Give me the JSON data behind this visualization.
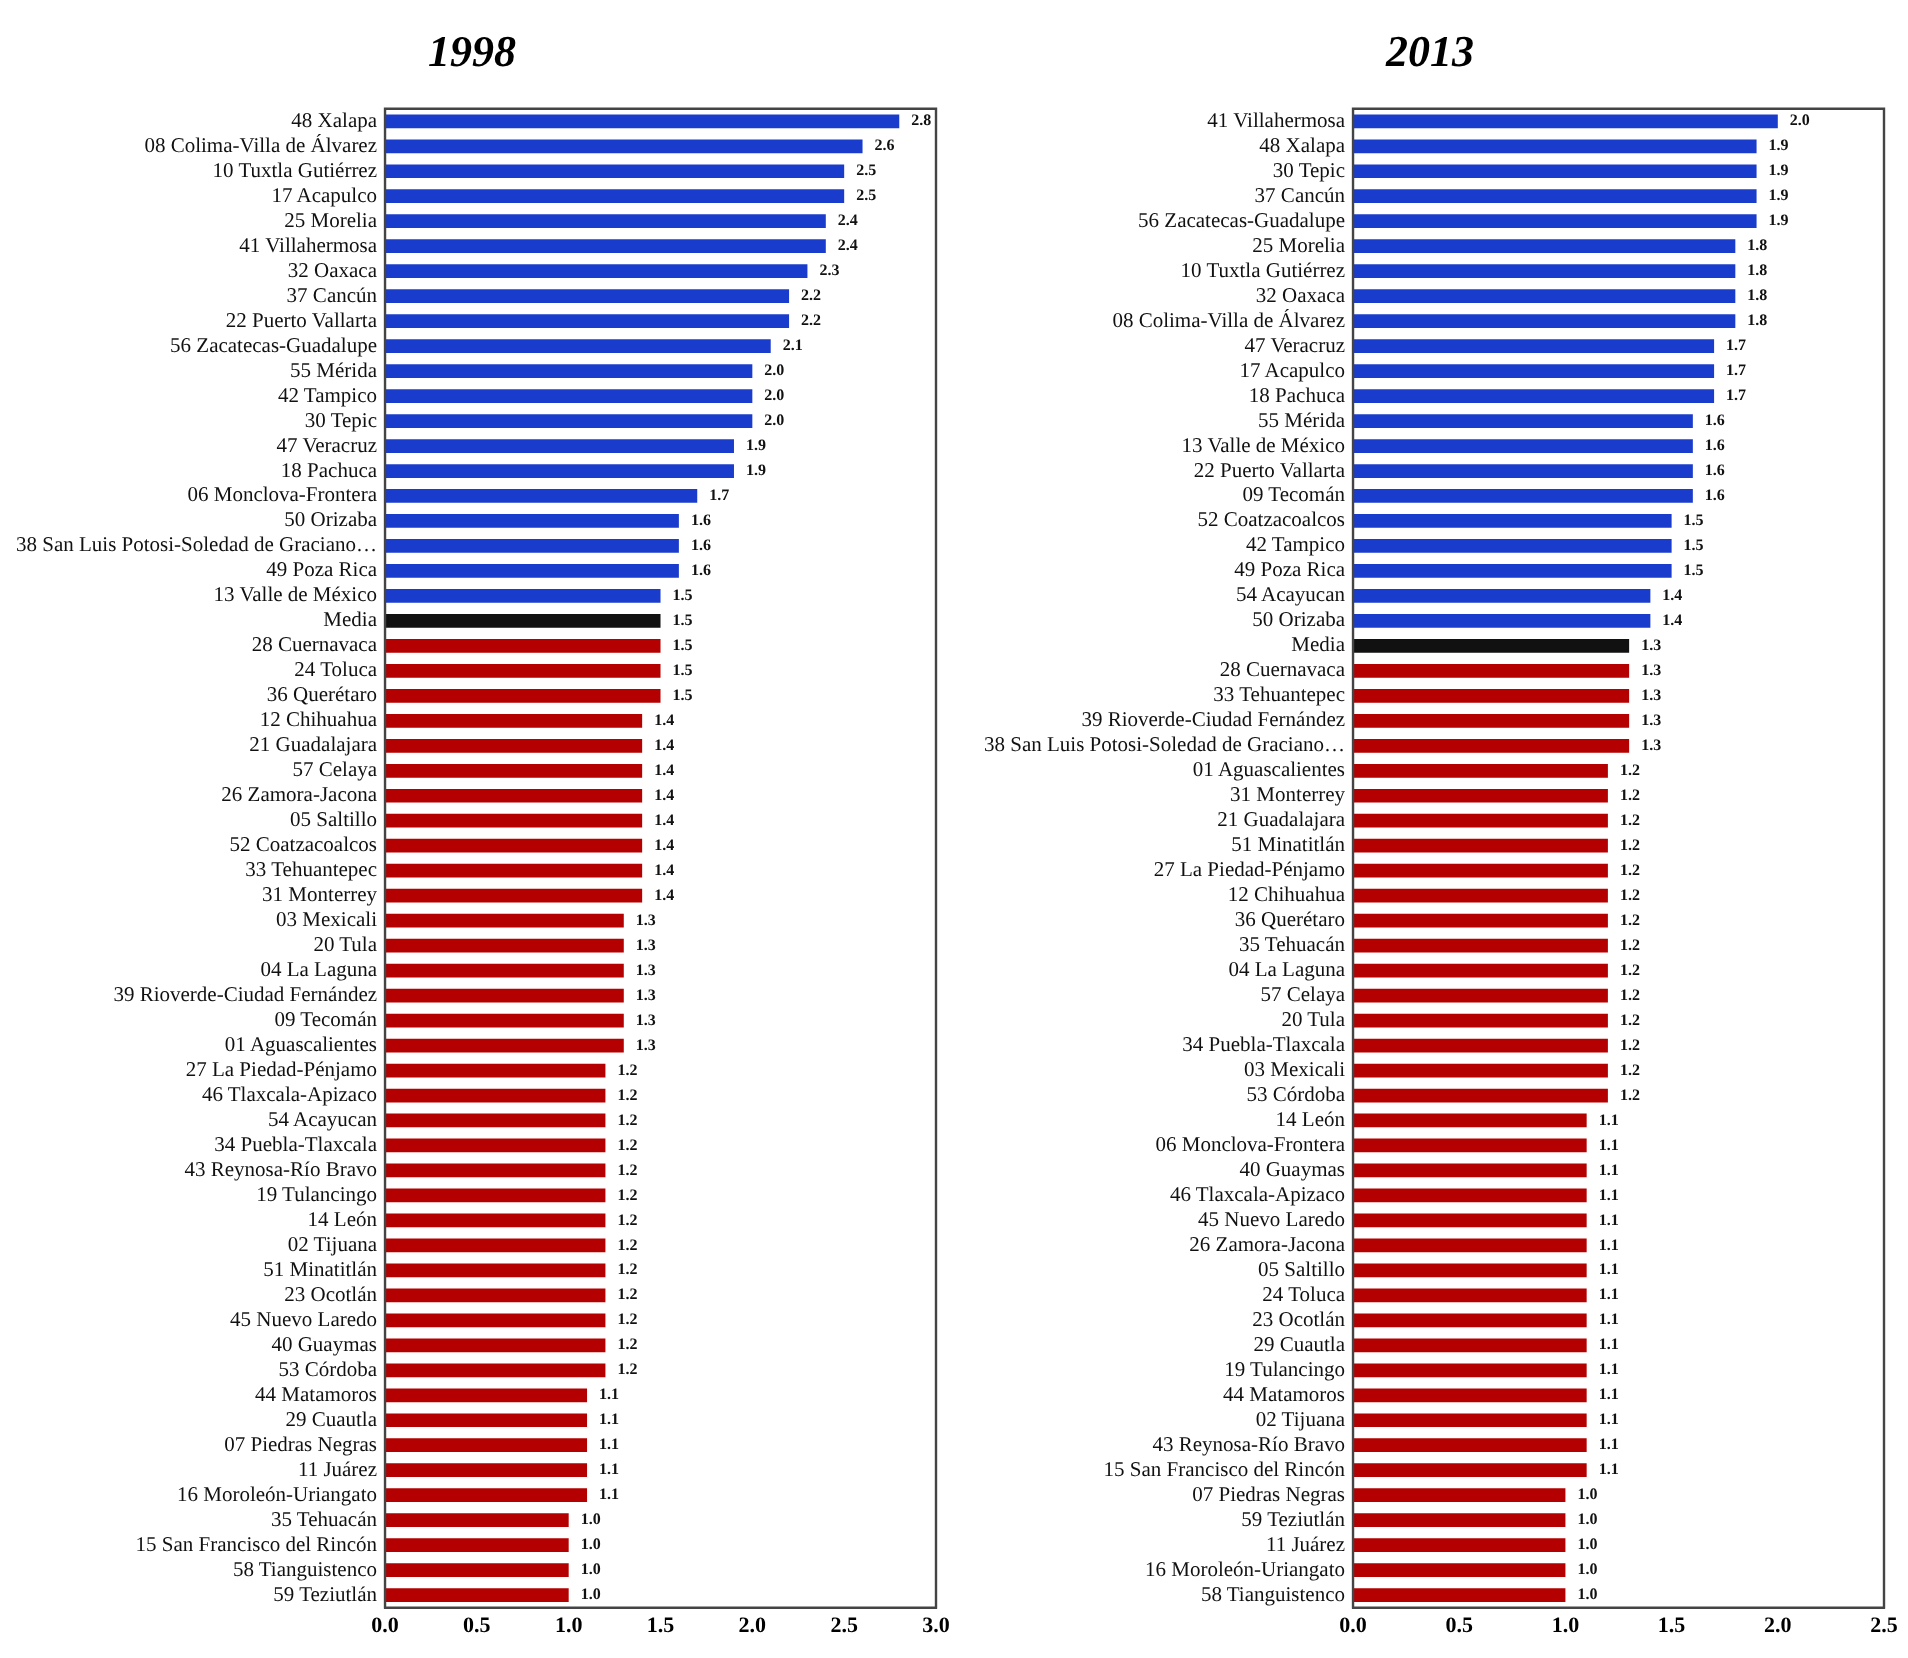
{
  "chart_data": [
    {
      "type": "bar",
      "orientation": "horizontal",
      "title": "1998",
      "categories": [
        "48 Xalapa",
        "08 Colima-Villa de Álvarez",
        "10 Tuxtla Gutiérrez",
        "17 Acapulco",
        "25 Morelia",
        "41 Villahermosa",
        "32 Oaxaca",
        "37 Cancún",
        "22 Puerto Vallarta",
        "56 Zacatecas-Guadalupe",
        "55 Mérida",
        "42 Tampico",
        "30 Tepic",
        "47 Veracruz",
        "18 Pachuca",
        "06 Monclova-Frontera",
        "50 Orizaba",
        "38 San Luis Potosi-Soledad de Graciano…",
        "49 Poza Rica",
        "13 Valle de México",
        "Media",
        "28 Cuernavaca",
        "24 Toluca",
        "36 Querétaro",
        "12 Chihuahua",
        "21 Guadalajara",
        "57 Celaya",
        "26 Zamora-Jacona",
        "05 Saltillo",
        "52 Coatzacoalcos",
        "33 Tehuantepec",
        "31 Monterrey",
        "03 Mexicali",
        "20 Tula",
        "04 La Laguna",
        "39 Rioverde-Ciudad Fernández",
        "09 Tecomán",
        "01 Aguascalientes",
        "27 La Piedad-Pénjamo",
        "46 Tlaxcala-Apizaco",
        "54 Acayucan",
        "34 Puebla-Tlaxcala",
        "43 Reynosa-Río Bravo",
        "19 Tulancingo",
        "14 León",
        "02 Tijuana",
        "51 Minatitlán",
        "23 Ocotlán",
        "45 Nuevo Laredo",
        "40 Guaymas",
        "53 Córdoba",
        "44 Matamoros",
        "29 Cuautla",
        "07 Piedras Negras",
        "11 Juárez",
        "16 Moroleón-Uriangato",
        "35 Tehuacán",
        "15 San Francisco del Rincón",
        "58 Tianguistenco",
        "59 Teziutlán"
      ],
      "values": [
        2.8,
        2.6,
        2.5,
        2.5,
        2.4,
        2.4,
        2.3,
        2.2,
        2.2,
        2.1,
        2.0,
        2.0,
        2.0,
        1.9,
        1.9,
        1.7,
        1.6,
        1.6,
        1.6,
        1.5,
        1.5,
        1.5,
        1.5,
        1.5,
        1.4,
        1.4,
        1.4,
        1.4,
        1.4,
        1.4,
        1.4,
        1.4,
        1.3,
        1.3,
        1.3,
        1.3,
        1.3,
        1.3,
        1.2,
        1.2,
        1.2,
        1.2,
        1.2,
        1.2,
        1.2,
        1.2,
        1.2,
        1.2,
        1.2,
        1.2,
        1.2,
        1.1,
        1.1,
        1.1,
        1.1,
        1.1,
        1.0,
        1.0,
        1.0,
        1.0
      ],
      "value_labels": [
        "2.8",
        "2.6",
        "2.5",
        "2.5",
        "2.4",
        "2.4",
        "2.3",
        "2.2",
        "2.2",
        "2.1",
        "2.0",
        "2.0",
        "2.0",
        "1.9",
        "1.9",
        "1.7",
        "1.6",
        "1.6",
        "1.6",
        "1.5",
        "1.5",
        "1.5",
        "1.5",
        "1.5",
        "1.4",
        "1.4",
        "1.4",
        "1.4",
        "1.4",
        "1.4",
        "1.4",
        "1.4",
        "1.3",
        "1.3",
        "1.3",
        "1.3",
        "1.3",
        "1.3",
        "1.2",
        "1.2",
        "1.2",
        "1.2",
        "1.2",
        "1.2",
        "1.2",
        "1.2",
        "1.2",
        "1.2",
        "1.2",
        "1.2",
        "1.2",
        "1.1",
        "1.1",
        "1.1",
        "1.1",
        "1.1",
        "1.0",
        "1.0",
        "1.0",
        "1.0"
      ],
      "colors": [
        "#1a3ccc",
        "#1a3ccc",
        "#1a3ccc",
        "#1a3ccc",
        "#1a3ccc",
        "#1a3ccc",
        "#1a3ccc",
        "#1a3ccc",
        "#1a3ccc",
        "#1a3ccc",
        "#1a3ccc",
        "#1a3ccc",
        "#1a3ccc",
        "#1a3ccc",
        "#1a3ccc",
        "#1a3ccc",
        "#1a3ccc",
        "#1a3ccc",
        "#1a3ccc",
        "#1a3ccc",
        "#111111",
        "#b40000",
        "#b40000",
        "#b40000",
        "#b40000",
        "#b40000",
        "#b40000",
        "#b40000",
        "#b40000",
        "#b40000",
        "#b40000",
        "#b40000",
        "#b40000",
        "#b40000",
        "#b40000",
        "#b40000",
        "#b40000",
        "#b40000",
        "#b40000",
        "#b40000",
        "#b40000",
        "#b40000",
        "#b40000",
        "#b40000",
        "#b40000",
        "#b40000",
        "#b40000",
        "#b40000",
        "#b40000",
        "#b40000",
        "#b40000",
        "#b40000",
        "#b40000",
        "#b40000",
        "#b40000",
        "#b40000",
        "#b40000",
        "#b40000",
        "#b40000",
        "#b40000"
      ],
      "xlim": [
        0,
        3
      ],
      "xticks": [
        {
          "value": 0,
          "label": "0.0"
        },
        {
          "value": 0.5,
          "label": "0.5"
        },
        {
          "value": 1,
          "label": "1.0"
        },
        {
          "value": 1.5,
          "label": "1.5"
        },
        {
          "value": 2,
          "label": "2.0"
        },
        {
          "value": 2.5,
          "label": "2.5"
        },
        {
          "value": 3,
          "label": "3.0"
        }
      ]
    },
    {
      "type": "bar",
      "orientation": "horizontal",
      "title": "2013",
      "categories": [
        "41 Villahermosa",
        "48 Xalapa",
        "30 Tepic",
        "37 Cancún",
        "56 Zacatecas-Guadalupe",
        "25 Morelia",
        "10 Tuxtla Gutiérrez",
        "32 Oaxaca",
        "08 Colima-Villa de Álvarez",
        "47 Veracruz",
        "17 Acapulco",
        "18 Pachuca",
        "55 Mérida",
        "13 Valle de México",
        "22 Puerto Vallarta",
        "09 Tecomán",
        "52 Coatzacoalcos",
        "42 Tampico",
        "49 Poza Rica",
        "54 Acayucan",
        "50 Orizaba",
        "Media",
        "28 Cuernavaca",
        "33 Tehuantepec",
        "39 Rioverde-Ciudad Fernández",
        "38 San Luis Potosi-Soledad de Graciano…",
        "01 Aguascalientes",
        "31 Monterrey",
        "21 Guadalajara",
        "51 Minatitlán",
        "27 La Piedad-Pénjamo",
        "12 Chihuahua",
        "36 Querétaro",
        "35 Tehuacán",
        "04 La Laguna",
        "57 Celaya",
        "20 Tula",
        "34 Puebla-Tlaxcala",
        "03 Mexicali",
        "53 Córdoba",
        "14 León",
        "06 Monclova-Frontera",
        "40 Guaymas",
        "46 Tlaxcala-Apizaco",
        "45 Nuevo Laredo",
        "26 Zamora-Jacona",
        "05 Saltillo",
        "24 Toluca",
        "23 Ocotlán",
        "29 Cuautla",
        "19 Tulancingo",
        "44 Matamoros",
        "02 Tijuana",
        "43 Reynosa-Río Bravo",
        "15 San Francisco del Rincón",
        "07 Piedras Negras",
        "59 Teziutlán",
        "11 Juárez",
        "16 Moroleón-Uriangato",
        "58 Tianguistenco"
      ],
      "values": [
        2.0,
        1.9,
        1.9,
        1.9,
        1.9,
        1.8,
        1.8,
        1.8,
        1.8,
        1.7,
        1.7,
        1.7,
        1.6,
        1.6,
        1.6,
        1.6,
        1.5,
        1.5,
        1.5,
        1.4,
        1.4,
        1.3,
        1.3,
        1.3,
        1.3,
        1.3,
        1.2,
        1.2,
        1.2,
        1.2,
        1.2,
        1.2,
        1.2,
        1.2,
        1.2,
        1.2,
        1.2,
        1.2,
        1.2,
        1.2,
        1.1,
        1.1,
        1.1,
        1.1,
        1.1,
        1.1,
        1.1,
        1.1,
        1.1,
        1.1,
        1.1,
        1.1,
        1.1,
        1.1,
        1.1,
        1.0,
        1.0,
        1.0,
        1.0,
        1.0
      ],
      "value_labels": [
        "2.0",
        "1.9",
        "1.9",
        "1.9",
        "1.9",
        "1.8",
        "1.8",
        "1.8",
        "1.8",
        "1.7",
        "1.7",
        "1.7",
        "1.6",
        "1.6",
        "1.6",
        "1.6",
        "1.5",
        "1.5",
        "1.5",
        "1.4",
        "1.4",
        "1.3",
        "1.3",
        "1.3",
        "1.3",
        "1.3",
        "1.2",
        "1.2",
        "1.2",
        "1.2",
        "1.2",
        "1.2",
        "1.2",
        "1.2",
        "1.2",
        "1.2",
        "1.2",
        "1.2",
        "1.2",
        "1.2",
        "1.1",
        "1.1",
        "1.1",
        "1.1",
        "1.1",
        "1.1",
        "1.1",
        "1.1",
        "1.1",
        "1.1",
        "1.1",
        "1.1",
        "1.1",
        "1.1",
        "1.1",
        "1.0",
        "1.0",
        "1.0",
        "1.0",
        "1.0"
      ],
      "colors": [
        "#1a3ccc",
        "#1a3ccc",
        "#1a3ccc",
        "#1a3ccc",
        "#1a3ccc",
        "#1a3ccc",
        "#1a3ccc",
        "#1a3ccc",
        "#1a3ccc",
        "#1a3ccc",
        "#1a3ccc",
        "#1a3ccc",
        "#1a3ccc",
        "#1a3ccc",
        "#1a3ccc",
        "#1a3ccc",
        "#1a3ccc",
        "#1a3ccc",
        "#1a3ccc",
        "#1a3ccc",
        "#1a3ccc",
        "#111111",
        "#b40000",
        "#b40000",
        "#b40000",
        "#b40000",
        "#b40000",
        "#b40000",
        "#b40000",
        "#b40000",
        "#b40000",
        "#b40000",
        "#b40000",
        "#b40000",
        "#b40000",
        "#b40000",
        "#b40000",
        "#b40000",
        "#b40000",
        "#b40000",
        "#b40000",
        "#b40000",
        "#b40000",
        "#b40000",
        "#b40000",
        "#b40000",
        "#b40000",
        "#b40000",
        "#b40000",
        "#b40000",
        "#b40000",
        "#b40000",
        "#b40000",
        "#b40000",
        "#b40000",
        "#b40000",
        "#b40000",
        "#b40000",
        "#b40000",
        "#b40000"
      ],
      "xlim": [
        0,
        2.5
      ],
      "xticks": [
        {
          "value": 0,
          "label": "0.0"
        },
        {
          "value": 0.5,
          "label": "0.5"
        },
        {
          "value": 1,
          "label": "1.0"
        },
        {
          "value": 1.5,
          "label": "1.5"
        },
        {
          "value": 2,
          "label": "2.0"
        },
        {
          "value": 2.5,
          "label": "2.5"
        }
      ]
    }
  ]
}
